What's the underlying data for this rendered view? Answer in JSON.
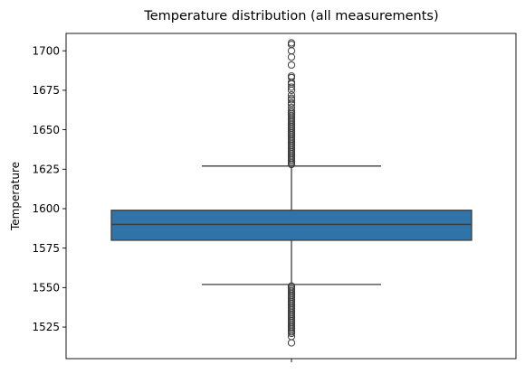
{
  "chart_data": {
    "type": "box",
    "title": "Temperature distribution (all measurements)",
    "xlabel": "",
    "ylabel": "Temperature",
    "ylim": [
      1505,
      1711
    ],
    "yticks": [
      1525,
      1550,
      1575,
      1600,
      1625,
      1650,
      1675,
      1700
    ],
    "grid": false,
    "legend": "none",
    "box": {
      "q1": 1580,
      "median": 1590,
      "q3": 1599,
      "whisker_low": 1552,
      "whisker_high": 1627,
      "fill_color": "#2f73a8",
      "edge_color": "#3d3d3d"
    },
    "outliers_high": [
      1628,
      1629,
      1630,
      1631,
      1632,
      1633,
      1634,
      1635,
      1636,
      1637,
      1638,
      1639,
      1640,
      1641,
      1642,
      1643,
      1644,
      1645,
      1646,
      1647,
      1648,
      1649,
      1650,
      1651,
      1652,
      1653,
      1654,
      1655,
      1656,
      1657,
      1658,
      1659,
      1660,
      1661,
      1662,
      1664,
      1666,
      1667,
      1669,
      1670,
      1672,
      1675,
      1677,
      1679,
      1680,
      1683,
      1684,
      1691,
      1696,
      1700,
      1704,
      1705
    ],
    "outliers_low": [
      1551,
      1550,
      1549,
      1548,
      1547,
      1546,
      1545,
      1544,
      1543,
      1542,
      1541,
      1540,
      1539,
      1538,
      1537,
      1536,
      1535,
      1534,
      1533,
      1532,
      1531,
      1530,
      1529,
      1528,
      1527,
      1526,
      1525,
      1524,
      1523,
      1522,
      1521,
      1519,
      1515
    ]
  }
}
